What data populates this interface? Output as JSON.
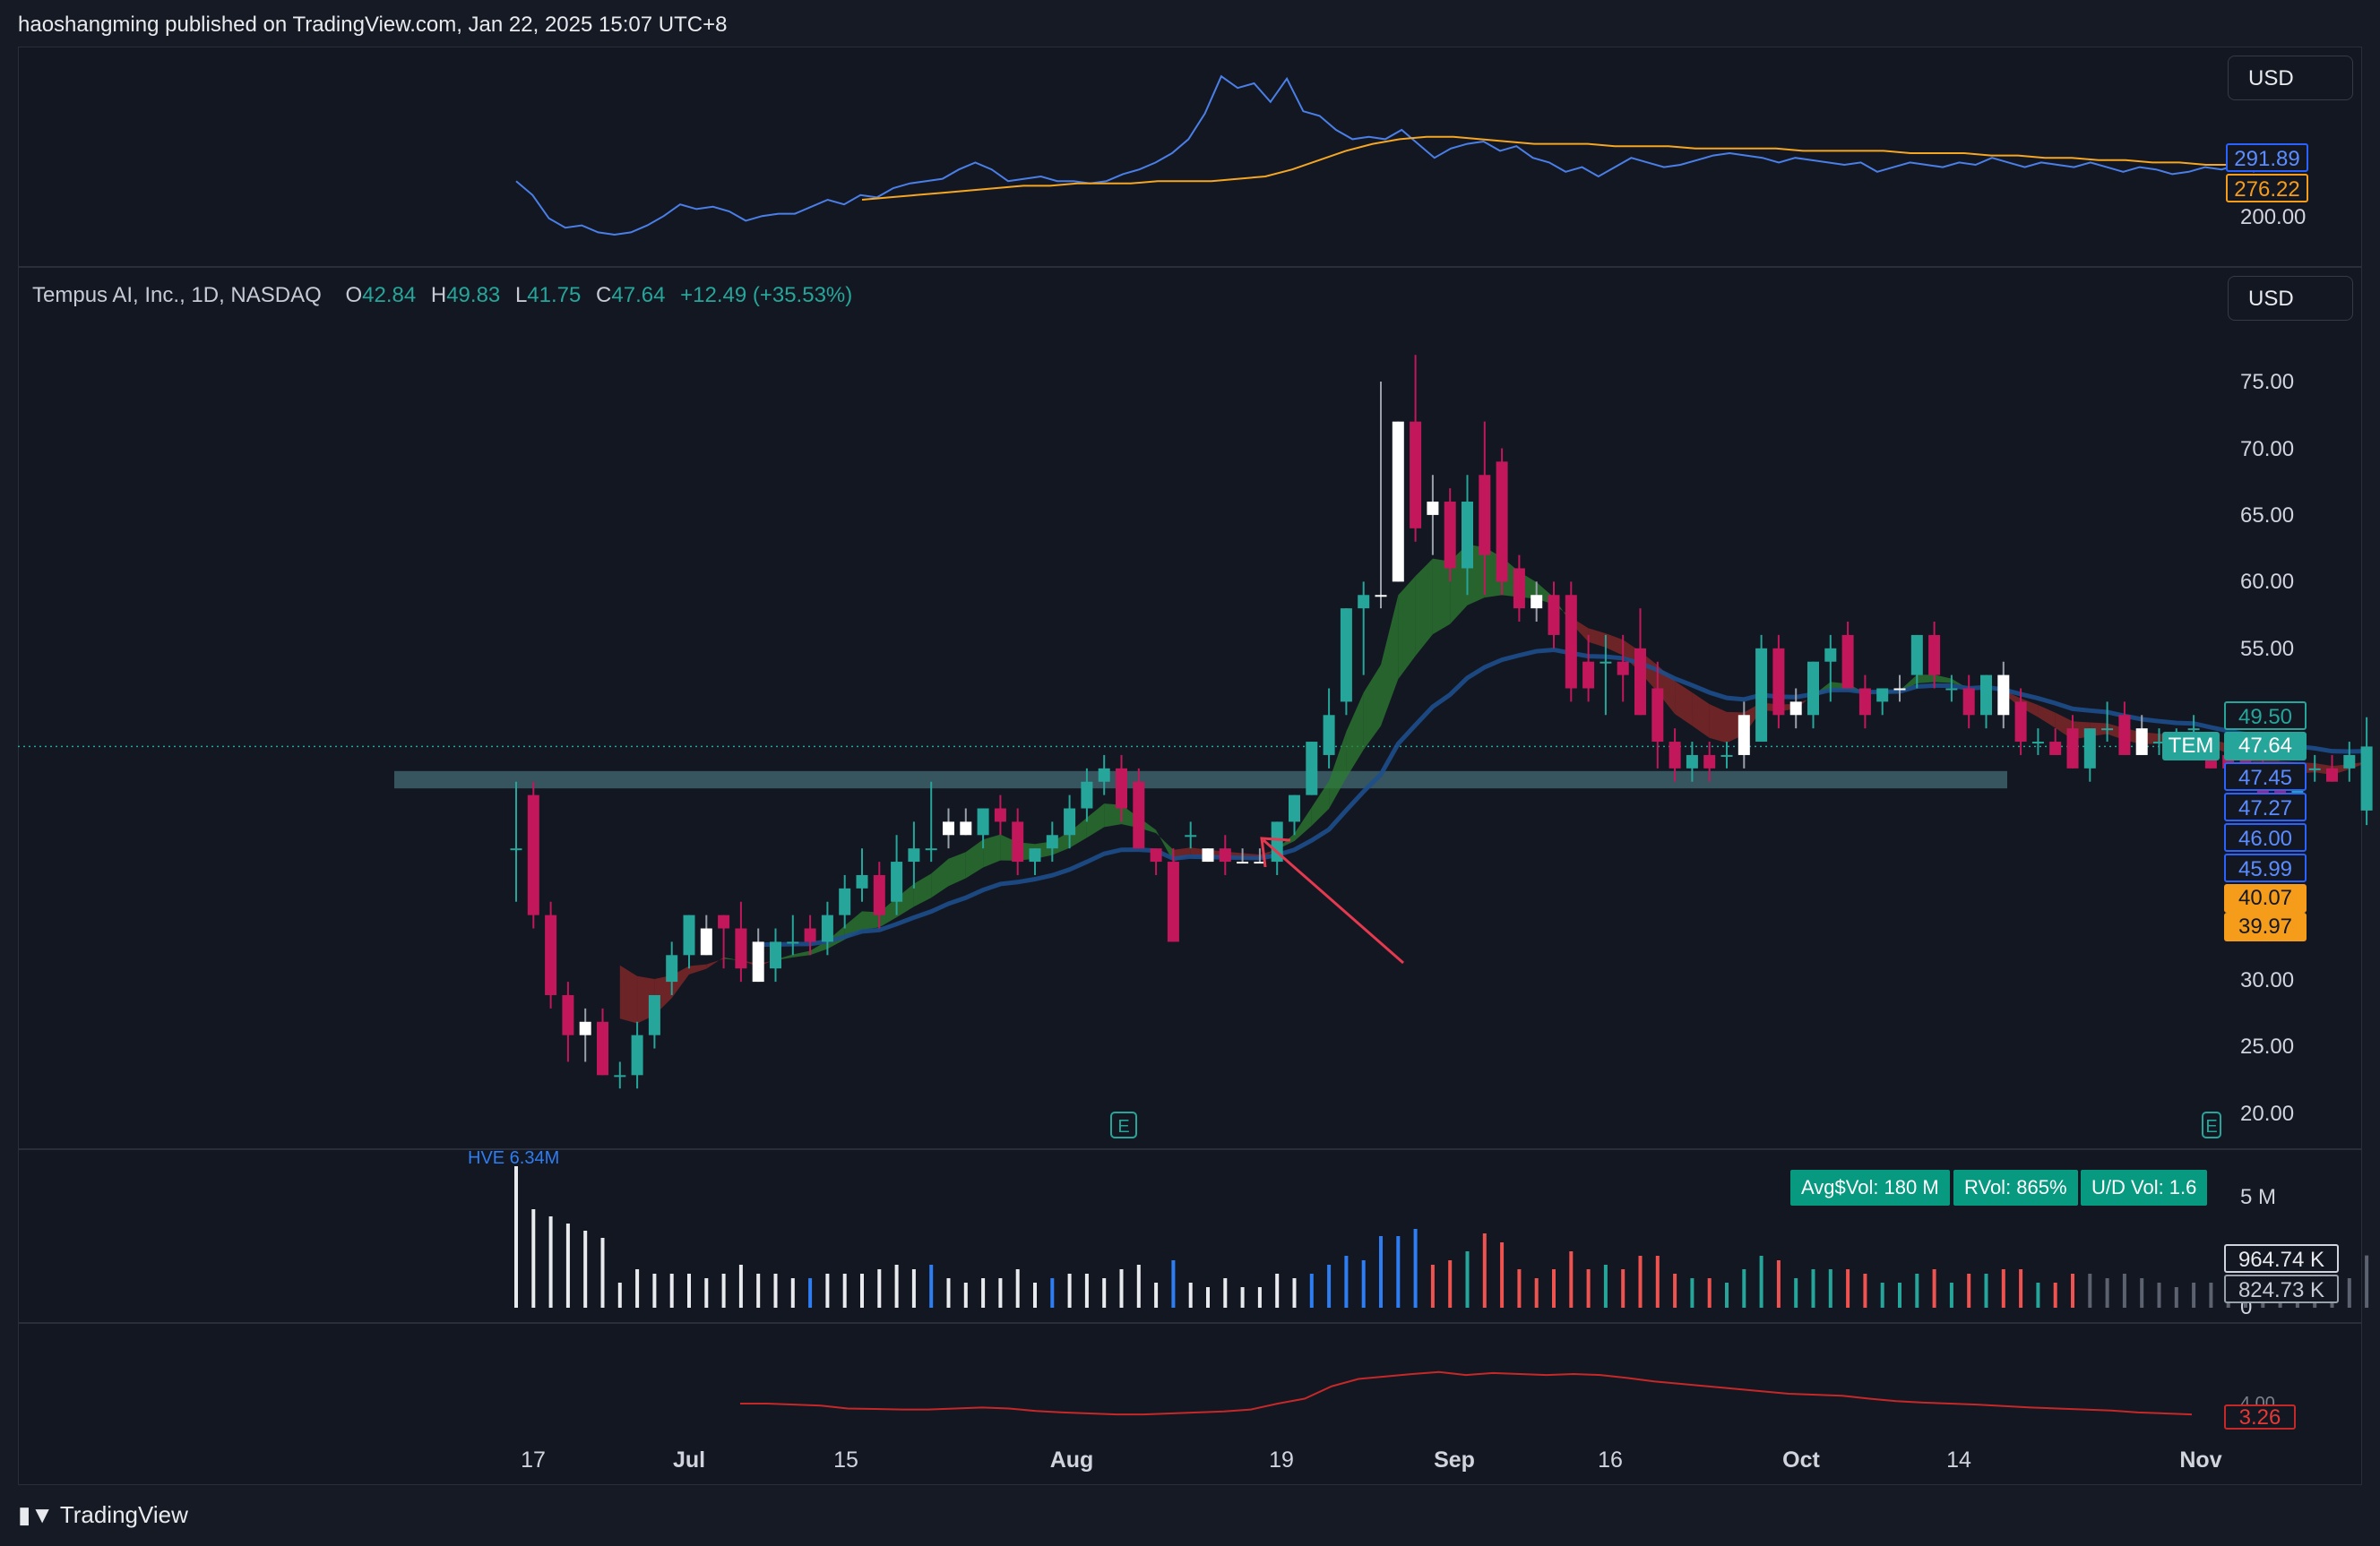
{
  "header": {
    "publish_text": "haoshangming published on TradingView.com, Jan 22, 2025 15:07 UTC+8"
  },
  "top_pane": {
    "currency": "USD",
    "tags": {
      "blue": "291.89",
      "orange": "276.22",
      "tick": "200.00"
    },
    "colors": {
      "line": "#4a7fe8",
      "ma": "#f5a623"
    },
    "series_line": [
      28,
      22,
      12,
      8,
      9,
      6,
      5,
      6,
      9,
      13,
      18,
      16,
      17,
      15,
      11,
      13,
      14,
      14,
      17,
      20,
      18,
      22,
      21,
      25,
      27,
      28,
      29,
      33,
      36,
      33,
      28,
      29,
      30,
      28,
      28,
      27,
      28,
      31,
      33,
      36,
      40,
      46,
      57,
      73,
      68,
      70,
      62,
      72,
      58,
      56,
      50,
      46,
      47,
      46,
      50,
      44,
      38,
      42,
      44,
      45,
      41,
      43,
      38,
      36,
      32,
      34,
      30,
      34,
      38,
      36,
      34,
      35,
      37,
      39,
      40,
      39,
      38,
      36,
      38,
      37,
      36,
      35,
      36,
      32,
      34,
      36,
      35,
      34,
      36,
      35,
      38,
      36,
      34,
      36,
      35,
      34,
      36,
      34,
      32,
      34,
      33,
      31,
      32,
      34,
      33,
      35,
      32
    ],
    "series_ma": [
      20,
      21,
      22,
      23,
      24,
      25,
      26,
      26,
      27,
      27,
      27,
      28,
      28,
      28,
      29,
      30,
      33,
      37,
      41,
      44,
      46,
      47,
      47,
      46,
      45,
      44,
      44,
      44,
      43,
      43,
      43,
      42,
      42,
      42,
      42,
      41,
      41,
      41,
      41,
      40,
      40,
      40,
      39,
      39,
      38,
      38,
      37,
      37,
      36,
      36,
      35,
      35
    ]
  },
  "main_pane": {
    "currency": "USD",
    "legend": {
      "symbol": "Tempus AI, Inc., 1D, NASDAQ",
      "o_label": "O",
      "o": "42.84",
      "h_label": "H",
      "h": "49.83",
      "l_label": "L",
      "l": "41.75",
      "c_label": "C",
      "c": "47.64",
      "change": "+12.49 (+35.53%)"
    },
    "price_ticks": [
      "75.00",
      "70.00",
      "65.00",
      "60.00",
      "55.00",
      "30.00",
      "25.00",
      "20.00"
    ],
    "tags": {
      "t1": "49.50",
      "t2": "47.64",
      "t3": "47.45",
      "t4": "47.27",
      "t5": "46.00",
      "t6": "45.99",
      "t7": "40.07",
      "t8": "39.97"
    },
    "symbol_tag": "TEM",
    "earnings_icon": "E",
    "colors": {
      "up": "#26a69a",
      "down": "#c2185b",
      "white": "#ffffff",
      "support_zone": "#3d6068",
      "ema_fast_up": "#2e7d32",
      "ema_fast_down": "#8b2a2a",
      "ema_slow": "#1e4e8c",
      "arrow": "#e53950"
    }
  },
  "chart_data": {
    "type": "candlestick",
    "title": "Tempus AI, Inc., 1D, NASDAQ",
    "x_labels": [
      "17",
      "Jul",
      "15",
      "Aug",
      "19",
      "Sep",
      "16",
      "Oct",
      "14",
      "Nov"
    ],
    "ylim": [
      18,
      78
    ],
    "support_zone": [
      44.5,
      45.8
    ],
    "candles": [
      {
        "o": 40,
        "h": 45,
        "l": 36,
        "c": 40,
        "w": 0
      },
      {
        "o": 44,
        "h": 45,
        "l": 34,
        "c": 35,
        "w": 0
      },
      {
        "o": 35,
        "h": 36,
        "l": 28,
        "c": 29,
        "w": 0
      },
      {
        "o": 29,
        "h": 30,
        "l": 24,
        "c": 26,
        "w": 0
      },
      {
        "o": 26,
        "h": 28,
        "l": 24,
        "c": 27,
        "w": 1
      },
      {
        "o": 27,
        "h": 28,
        "l": 23,
        "c": 23,
        "w": 0
      },
      {
        "o": 23,
        "h": 24,
        "l": 22,
        "c": 23,
        "w": 0
      },
      {
        "o": 23,
        "h": 27,
        "l": 22,
        "c": 26,
        "w": 0
      },
      {
        "o": 26,
        "h": 29,
        "l": 25,
        "c": 29,
        "w": 0
      },
      {
        "o": 30,
        "h": 33,
        "l": 29,
        "c": 32,
        "w": 0
      },
      {
        "o": 32,
        "h": 35,
        "l": 31,
        "c": 35,
        "w": 0
      },
      {
        "o": 34,
        "h": 35,
        "l": 32,
        "c": 32,
        "w": 1
      },
      {
        "o": 35,
        "h": 35,
        "l": 31,
        "c": 34,
        "w": 0
      },
      {
        "o": 34,
        "h": 36,
        "l": 30,
        "c": 31,
        "w": 0
      },
      {
        "o": 33,
        "h": 34,
        "l": 30,
        "c": 30,
        "w": 1
      },
      {
        "o": 31,
        "h": 34,
        "l": 30,
        "c": 33,
        "w": 0
      },
      {
        "o": 33,
        "h": 35,
        "l": 32,
        "c": 33,
        "w": 0
      },
      {
        "o": 34,
        "h": 35,
        "l": 32,
        "c": 33,
        "w": 0
      },
      {
        "o": 33,
        "h": 36,
        "l": 32,
        "c": 35,
        "w": 0
      },
      {
        "o": 35,
        "h": 38,
        "l": 34,
        "c": 37,
        "w": 0
      },
      {
        "o": 37,
        "h": 40,
        "l": 36,
        "c": 38,
        "w": 0
      },
      {
        "o": 38,
        "h": 39,
        "l": 34,
        "c": 35,
        "w": 0
      },
      {
        "o": 36,
        "h": 41,
        "l": 35,
        "c": 39,
        "w": 0
      },
      {
        "o": 39,
        "h": 42,
        "l": 37,
        "c": 40,
        "w": 0
      },
      {
        "o": 40,
        "h": 45,
        "l": 39,
        "c": 40,
        "w": 0
      },
      {
        "o": 41,
        "h": 43,
        "l": 40,
        "c": 42,
        "w": 1
      },
      {
        "o": 42,
        "h": 43,
        "l": 41,
        "c": 41,
        "w": 1
      },
      {
        "o": 41,
        "h": 43,
        "l": 40,
        "c": 43,
        "w": 0
      },
      {
        "o": 43,
        "h": 44,
        "l": 41,
        "c": 42,
        "w": 0
      },
      {
        "o": 42,
        "h": 43,
        "l": 38,
        "c": 39,
        "w": 0
      },
      {
        "o": 39,
        "h": 40,
        "l": 38,
        "c": 40,
        "w": 0
      },
      {
        "o": 40,
        "h": 42,
        "l": 39,
        "c": 41,
        "w": 0
      },
      {
        "o": 41,
        "h": 44,
        "l": 40,
        "c": 43,
        "w": 0
      },
      {
        "o": 43,
        "h": 46,
        "l": 42,
        "c": 45,
        "w": 0
      },
      {
        "o": 45,
        "h": 47,
        "l": 44,
        "c": 46,
        "w": 0
      },
      {
        "o": 46,
        "h": 47,
        "l": 42,
        "c": 43,
        "w": 0
      },
      {
        "o": 45,
        "h": 46,
        "l": 40,
        "c": 40,
        "w": 0
      },
      {
        "o": 40,
        "h": 40,
        "l": 38,
        "c": 39,
        "w": 0
      },
      {
        "o": 39,
        "h": 40,
        "l": 33,
        "c": 33,
        "w": 0
      },
      {
        "o": 41,
        "h": 42,
        "l": 40,
        "c": 41,
        "w": 0
      },
      {
        "o": 40,
        "h": 40,
        "l": 39,
        "c": 39,
        "w": 1
      },
      {
        "o": 40,
        "h": 41,
        "l": 38,
        "c": 39,
        "w": 0
      },
      {
        "o": 39,
        "h": 40,
        "l": 39,
        "c": 39,
        "w": 1
      },
      {
        "o": 39,
        "h": 40,
        "l": 39,
        "c": 39,
        "w": 1
      },
      {
        "o": 39,
        "h": 42,
        "l": 38,
        "c": 42,
        "w": 0
      },
      {
        "o": 42,
        "h": 44,
        "l": 41,
        "c": 44,
        "w": 0
      },
      {
        "o": 44,
        "h": 48,
        "l": 44,
        "c": 48,
        "w": 0
      },
      {
        "o": 47,
        "h": 52,
        "l": 46,
        "c": 50,
        "w": 0
      },
      {
        "o": 51,
        "h": 58,
        "l": 50,
        "c": 58,
        "w": 0
      },
      {
        "o": 58,
        "h": 60,
        "l": 53,
        "c": 59,
        "w": 0
      },
      {
        "o": 59,
        "h": 75,
        "l": 58,
        "c": 59,
        "w": 1
      },
      {
        "o": 60,
        "h": 72,
        "l": 60,
        "c": 72,
        "w": 1
      },
      {
        "o": 72,
        "h": 77,
        "l": 63,
        "c": 64,
        "w": 0
      },
      {
        "o": 66,
        "h": 68,
        "l": 62,
        "c": 65,
        "w": 1
      },
      {
        "o": 66,
        "h": 67,
        "l": 60,
        "c": 61,
        "w": 0
      },
      {
        "o": 61,
        "h": 68,
        "l": 59,
        "c": 66,
        "w": 0
      },
      {
        "o": 68,
        "h": 72,
        "l": 59,
        "c": 62,
        "w": 0
      },
      {
        "o": 69,
        "h": 70,
        "l": 59,
        "c": 60,
        "w": 0
      },
      {
        "o": 61,
        "h": 62,
        "l": 57,
        "c": 58,
        "w": 0
      },
      {
        "o": 59,
        "h": 60,
        "l": 57,
        "c": 58,
        "w": 1
      },
      {
        "o": 59,
        "h": 60,
        "l": 55,
        "c": 56,
        "w": 0
      },
      {
        "o": 59,
        "h": 60,
        "l": 51,
        "c": 52,
        "w": 0
      },
      {
        "o": 54,
        "h": 56,
        "l": 51,
        "c": 52,
        "w": 0
      },
      {
        "o": 54,
        "h": 56,
        "l": 50,
        "c": 54,
        "w": 0
      },
      {
        "o": 54,
        "h": 56,
        "l": 51,
        "c": 53,
        "w": 0
      },
      {
        "o": 55,
        "h": 58,
        "l": 50,
        "c": 50,
        "w": 0
      },
      {
        "o": 52,
        "h": 54,
        "l": 46,
        "c": 48,
        "w": 0
      },
      {
        "o": 48,
        "h": 49,
        "l": 45,
        "c": 46,
        "w": 0
      },
      {
        "o": 46,
        "h": 48,
        "l": 45,
        "c": 47,
        "w": 0
      },
      {
        "o": 47,
        "h": 48,
        "l": 45,
        "c": 46,
        "w": 0
      },
      {
        "o": 47,
        "h": 48,
        "l": 46,
        "c": 47,
        "w": 0
      },
      {
        "o": 47,
        "h": 51,
        "l": 46,
        "c": 50,
        "w": 1
      },
      {
        "o": 48,
        "h": 56,
        "l": 48,
        "c": 55,
        "w": 0
      },
      {
        "o": 55,
        "h": 56,
        "l": 49,
        "c": 50,
        "w": 0
      },
      {
        "o": 50,
        "h": 52,
        "l": 49,
        "c": 51,
        "w": 1
      },
      {
        "o": 50,
        "h": 54,
        "l": 49,
        "c": 54,
        "w": 0
      },
      {
        "o": 54,
        "h": 56,
        "l": 51,
        "c": 55,
        "w": 0
      },
      {
        "o": 56,
        "h": 57,
        "l": 52,
        "c": 52,
        "w": 0
      },
      {
        "o": 52,
        "h": 53,
        "l": 49,
        "c": 50,
        "w": 0
      },
      {
        "o": 51,
        "h": 52,
        "l": 50,
        "c": 52,
        "w": 0
      },
      {
        "o": 52,
        "h": 53,
        "l": 51,
        "c": 52,
        "w": 1
      },
      {
        "o": 53,
        "h": 56,
        "l": 52,
        "c": 56,
        "w": 0
      },
      {
        "o": 56,
        "h": 57,
        "l": 52,
        "c": 53,
        "w": 0
      },
      {
        "o": 52,
        "h": 53,
        "l": 51,
        "c": 52,
        "w": 0
      },
      {
        "o": 52,
        "h": 53,
        "l": 49,
        "c": 50,
        "w": 0
      },
      {
        "o": 50,
        "h": 53,
        "l": 49,
        "c": 53,
        "w": 0
      },
      {
        "o": 53,
        "h": 54,
        "l": 49,
        "c": 50,
        "w": 1
      },
      {
        "o": 51,
        "h": 52,
        "l": 47,
        "c": 48,
        "w": 0
      },
      {
        "o": 48,
        "h": 49,
        "l": 47,
        "c": 48,
        "w": 0
      },
      {
        "o": 48,
        "h": 49,
        "l": 47,
        "c": 47,
        "w": 0
      },
      {
        "o": 49,
        "h": 50,
        "l": 46,
        "c": 46,
        "w": 0
      },
      {
        "o": 46,
        "h": 49,
        "l": 45,
        "c": 49,
        "w": 0
      },
      {
        "o": 49,
        "h": 51,
        "l": 48,
        "c": 49,
        "w": 0
      },
      {
        "o": 50,
        "h": 51,
        "l": 47,
        "c": 47,
        "w": 0
      },
      {
        "o": 49,
        "h": 50,
        "l": 47,
        "c": 47,
        "w": 1
      },
      {
        "o": 48,
        "h": 49,
        "l": 47,
        "c": 48,
        "w": 0
      },
      {
        "o": 48,
        "h": 49,
        "l": 48,
        "c": 48,
        "w": 0
      },
      {
        "o": 49,
        "h": 50,
        "l": 48,
        "c": 49,
        "w": 0
      },
      {
        "o": 48,
        "h": 48,
        "l": 46,
        "c": 46,
        "w": 0
      },
      {
        "o": 47,
        "h": 47,
        "l": 46,
        "c": 46,
        "w": 0
      },
      {
        "o": 47,
        "h": 48,
        "l": 45,
        "c": 46,
        "w": 0
      },
      {
        "o": 46,
        "h": 47,
        "l": 44,
        "c": 44,
        "w": 0
      },
      {
        "o": 45,
        "h": 46,
        "l": 43,
        "c": 44,
        "w": 0
      },
      {
        "o": 44,
        "h": 46,
        "l": 43,
        "c": 46,
        "w": 0
      },
      {
        "o": 46,
        "h": 47,
        "l": 45,
        "c": 46,
        "w": 0
      },
      {
        "o": 46,
        "h": 47,
        "l": 45,
        "c": 45,
        "w": 0
      },
      {
        "o": 46,
        "h": 48,
        "l": 45,
        "c": 47,
        "w": 0
      },
      {
        "o": 42.84,
        "h": 49.83,
        "l": 41.75,
        "c": 47.64,
        "w": 0
      }
    ]
  },
  "volume_pane": {
    "hve_label": "HVE 6.34M",
    "badges": {
      "avg": "Avg$Vol: 180 M",
      "rvol": "RVol: 865%",
      "ud": "U/D Vol: 1.6"
    },
    "ticks": {
      "top": "5 M",
      "zero": "0"
    },
    "tags": {
      "t1": "964.74 K",
      "t2": "824.73 K"
    }
  },
  "bottom_pane": {
    "tag": "3.26",
    "tick": "4.00",
    "line_color": "#c62828",
    "series": [
      2.6,
      2.6,
      2.58,
      2.56,
      2.5,
      2.49,
      2.48,
      2.48,
      2.5,
      2.52,
      2.5,
      2.45,
      2.42,
      2.4,
      2.38,
      2.38,
      2.4,
      2.42,
      2.44,
      2.48,
      2.6,
      2.7,
      2.95,
      3.1,
      3.15,
      3.2,
      3.24,
      3.18,
      3.22,
      3.2,
      3.18,
      3.2,
      3.18,
      3.12,
      3.05,
      3.0,
      2.95,
      2.9,
      2.85,
      2.8,
      2.78,
      2.76,
      2.7,
      2.65,
      2.62,
      2.6,
      2.58,
      2.55,
      2.52,
      2.5,
      2.48,
      2.46,
      2.42,
      2.4,
      2.38
    ]
  },
  "x_axis": {
    "labels": [
      "17",
      "Jul",
      "15",
      "Aug",
      "19",
      "Sep",
      "16",
      "Oct",
      "14",
      "Nov"
    ]
  },
  "footer": {
    "brand": "TradingView"
  }
}
